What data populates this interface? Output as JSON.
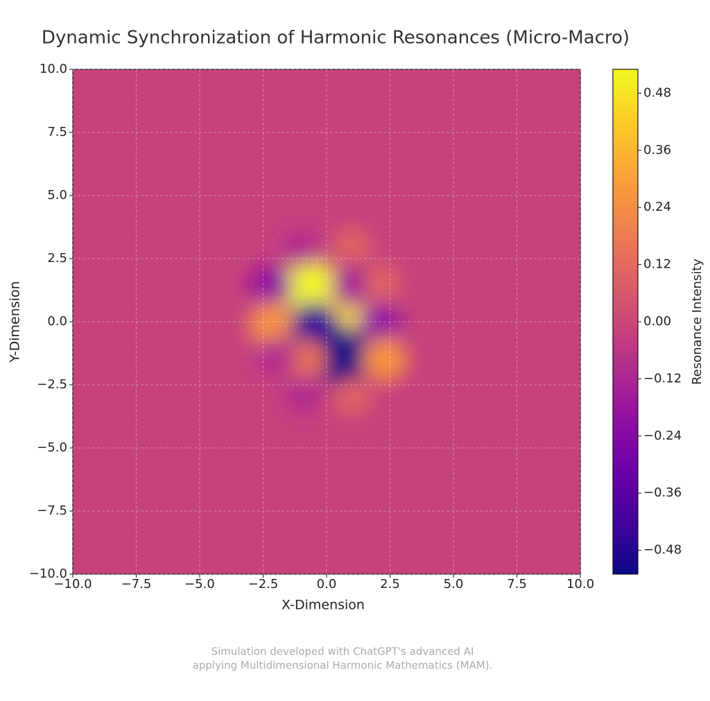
{
  "chart_data": {
    "type": "heatmap",
    "title": "Dynamic Synchronization of Harmonic Resonances (Micro-Macro)",
    "x_label": "X-Dimension",
    "y_label": "Y-Dimension",
    "colorbar_label": "Resonance Intensity",
    "colormap": "plasma",
    "grid": true,
    "background": -0.02,
    "x": [
      -0.7,
      0.6,
      -0.5,
      0.6,
      -2.2,
      -2.2,
      2.1,
      2.3,
      1.0,
      -0.8,
      -1.0,
      1.0,
      -2.0,
      2.2,
      1.0,
      -0.9
    ],
    "y": [
      1.4,
      0.2,
      -0.3,
      -1.4,
      1.4,
      -0.1,
      -0.1,
      -1.5,
      1.4,
      -1.5,
      2.9,
      3.0,
      -1.4,
      1.5,
      -3.0,
      -2.9
    ],
    "values": [
      0.52,
      0.45,
      -0.45,
      -0.55,
      -0.2,
      0.25,
      -0.2,
      0.25,
      -0.15,
      0.15,
      -0.1,
      0.1,
      -0.1,
      0.1,
      0.1,
      -0.1
    ],
    "xlim": [
      -10,
      10
    ],
    "ylim": [
      -10,
      10
    ],
    "xticks": [
      {
        "value": -10,
        "label": "−10.0"
      },
      {
        "value": -7.5,
        "label": "−7.5"
      },
      {
        "value": -5,
        "label": "−5.0"
      },
      {
        "value": -2.5,
        "label": "−2.5"
      },
      {
        "value": 0,
        "label": "0.0"
      },
      2.5,
      {
        "value": 5,
        "label": "5.0"
      },
      7.5,
      {
        "value": 10,
        "label": "10.0"
      }
    ],
    "yticks": [
      {
        "value": -10,
        "label": "−10.0"
      },
      {
        "value": -7.5,
        "label": "−7.5"
      },
      {
        "value": -5,
        "label": "−5.0"
      },
      {
        "value": -2.5,
        "label": "−2.5"
      },
      {
        "value": 0,
        "label": "0.0"
      },
      2.5,
      {
        "value": 5,
        "label": "5.0"
      },
      7.5,
      {
        "value": 10,
        "label": "10.0"
      }
    ],
    "clim": [
      -0.53,
      0.53
    ],
    "cticks": [
      {
        "value": -0.48,
        "label": "−0.48"
      },
      {
        "value": -0.36,
        "label": "−0.36"
      },
      {
        "value": -0.24,
        "label": "−0.24"
      },
      {
        "value": -0.12,
        "label": "−0.12"
      },
      {
        "value": 0,
        "label": "0.00"
      },
      {
        "value": 0.12,
        "label": "0.12"
      },
      {
        "value": 0.24,
        "label": "0.24"
      },
      {
        "value": 0.36,
        "label": "0.36"
      },
      {
        "value": 0.48,
        "label": "0.48"
      }
    ],
    "footer": [
      "Simulation developed with ChatGPT's advanced AI",
      "applying Multidimensional Harmonic Mathematics (MAM)."
    ]
  }
}
